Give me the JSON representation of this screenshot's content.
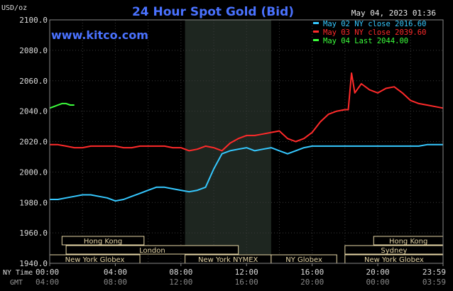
{
  "chart_data": {
    "type": "line",
    "title": "24 Hour Spot Gold (Bid)",
    "brand": "www.kitco.com",
    "timestamp": "May 04, 2023 01:36",
    "unit_label": "USD/oz",
    "ylim": [
      1940,
      2100
    ],
    "y_ticks": [
      "2100.0",
      "2080.0",
      "2060.0",
      "2040.0",
      "2020.0",
      "2000.0",
      "1980.0",
      "1960.0",
      "1940.0"
    ],
    "x_label_ny": "NY Time",
    "x_label_gmt": "GMT",
    "x_ticks_ny": [
      "00:00",
      "04:00",
      "08:00",
      "12:00",
      "16:00",
      "20:00",
      "23:59"
    ],
    "x_ticks_gmt": [
      "04:00",
      "08:00",
      "12:00",
      "16:00",
      "20:00",
      "00:00",
      "03:59"
    ],
    "legend": [
      {
        "label": "May 02 NY close 2016.60",
        "color": "#35c8ff"
      },
      {
        "label": "May 03 NY close 2039.60",
        "color": "#ff2a2a"
      },
      {
        "label": "May 04 Last 2044.00",
        "color": "#3cff3c"
      }
    ],
    "series": [
      {
        "name": "May 02",
        "color": "#35c8ff",
        "x": [
          0,
          0.5,
          1,
          1.5,
          2,
          2.5,
          3,
          3.5,
          4,
          4.5,
          5,
          5.5,
          6,
          6.5,
          7,
          7.5,
          8,
          8.5,
          9,
          9.5,
          10,
          10.5,
          11,
          11.5,
          12,
          12.5,
          13,
          13.5,
          14,
          14.5,
          15,
          15.5,
          16,
          16.5,
          17,
          17.5,
          18,
          18.5,
          19,
          19.5,
          20,
          20.5,
          21,
          21.5,
          22,
          22.5,
          23,
          23.5,
          23.98
        ],
        "values": [
          1982,
          1982,
          1983,
          1984,
          1985,
          1985,
          1984,
          1983,
          1981,
          1982,
          1984,
          1986,
          1988,
          1990,
          1990,
          1989,
          1988,
          1987,
          1988,
          1990,
          2002,
          2012,
          2014,
          2015,
          2016,
          2014,
          2015,
          2016,
          2014,
          2012,
          2014,
          2016,
          2017,
          2017,
          2017,
          2017,
          2017,
          2017,
          2017,
          2017,
          2017,
          2017,
          2017,
          2017,
          2017,
          2017,
          2018,
          2018,
          2018
        ]
      },
      {
        "name": "May 03",
        "color": "#ff2a2a",
        "x": [
          0,
          0.5,
          1,
          1.5,
          2,
          2.5,
          3,
          3.5,
          4,
          4.5,
          5,
          5.5,
          6,
          6.5,
          7,
          7.5,
          8,
          8.5,
          9,
          9.5,
          10,
          10.5,
          11,
          11.5,
          12,
          12.5,
          13,
          13.5,
          14,
          14.5,
          15,
          15.5,
          16,
          16.5,
          17,
          17.5,
          18,
          18.2,
          18.4,
          18.6,
          19,
          19.5,
          20,
          20.5,
          21,
          21.5,
          22,
          22.5,
          23,
          23.5,
          23.98
        ],
        "values": [
          2018,
          2018,
          2017,
          2016,
          2016,
          2017,
          2017,
          2017,
          2017,
          2016,
          2016,
          2017,
          2017,
          2017,
          2017,
          2016,
          2016,
          2014,
          2015,
          2017,
          2016,
          2014,
          2019,
          2022,
          2024,
          2024,
          2025,
          2026,
          2027,
          2022,
          2020,
          2022,
          2026,
          2033,
          2038,
          2040,
          2041,
          2041,
          2065,
          2052,
          2058,
          2054,
          2052,
          2055,
          2056,
          2052,
          2047,
          2045,
          2044,
          2043,
          2042
        ]
      },
      {
        "name": "May 04",
        "color": "#3cff3c",
        "x": [
          0,
          0.25,
          0.5,
          0.75,
          1,
          1.25,
          1.5
        ],
        "values": [
          2042,
          2043,
          2044,
          2045,
          2045,
          2044,
          2044
        ]
      }
    ],
    "sessions": [
      {
        "label": "Hong Kong",
        "start": 0.75,
        "end": 5.75,
        "row": 0
      },
      {
        "label": "London",
        "start": 1.0,
        "end": 11.5,
        "row": 1
      },
      {
        "label": "New York Globex",
        "start": 0,
        "end": 5.5,
        "row": 2
      },
      {
        "label": "New York NYMEX",
        "start": 8.25,
        "end": 13.5,
        "row": 2
      },
      {
        "label": "NY Globex",
        "start": 13.5,
        "end": 17.5,
        "row": 2
      },
      {
        "label": "Hong Kong",
        "start": 19.75,
        "end": 23.98,
        "row": 0
      },
      {
        "label": "Sydney",
        "start": 18.0,
        "end": 23.98,
        "row": 1
      },
      {
        "label": "New York Globex",
        "start": 18.0,
        "end": 23.98,
        "row": 2
      }
    ],
    "shaded_period": {
      "start": 8.25,
      "end": 13.5
    },
    "grid": true
  }
}
